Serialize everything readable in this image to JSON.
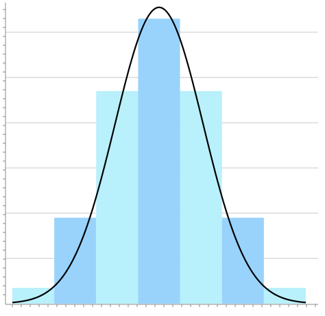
{
  "chart_data": {
    "type": "bar",
    "title": "",
    "xlabel": "",
    "ylabel": "",
    "bins": [
      {
        "from": 0,
        "to": 1,
        "value": 0.35
      },
      {
        "from": 1,
        "to": 2,
        "value": 1.9
      },
      {
        "from": 2,
        "to": 3,
        "value": 4.7
      },
      {
        "from": 3,
        "to": 4,
        "value": 6.3
      },
      {
        "from": 4,
        "to": 5,
        "value": 4.7
      },
      {
        "from": 5,
        "to": 6,
        "value": 1.9
      },
      {
        "from": 6,
        "to": 7,
        "value": 0.35
      }
    ],
    "curve": {
      "type": "normal",
      "mean": 3.5,
      "sd": 1.05,
      "peak": 6.55,
      "x_range": [
        0,
        7
      ]
    },
    "xlim": [
      0,
      7.25
    ],
    "ylim": [
      0,
      6.7
    ],
    "gridlines_y": [
      1,
      2,
      3,
      4,
      5,
      6
    ],
    "grid": true,
    "legend": "none",
    "colors": {
      "bar_light": "#b8f0fb",
      "bar_mid": "#99d3fc",
      "curve": "#000000",
      "grid": "#c8c8c8",
      "axis": "#888888"
    }
  }
}
